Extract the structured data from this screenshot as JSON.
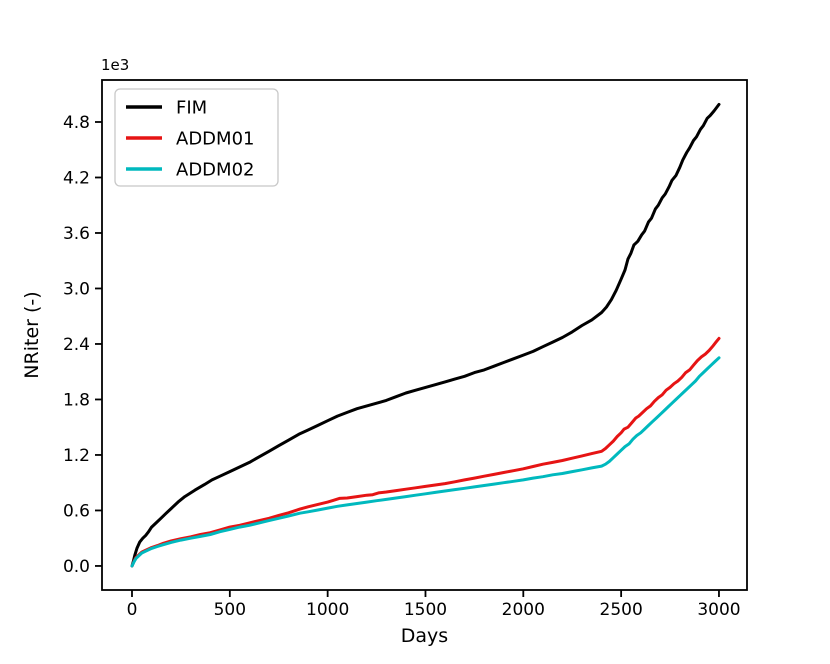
{
  "figure": {
    "background": "#ffffff"
  },
  "chart_data": {
    "type": "line",
    "title": "",
    "xlabel": "Days",
    "ylabel": "NRiter  (-)",
    "y_offset_text": "1e3",
    "y_values_unit": "1e3",
    "grid": false,
    "legend_position": "upper-left",
    "xlim": [
      -153.3,
      3143.3
    ],
    "ylim": [
      -0.26,
      5.254
    ],
    "xticks": [
      0,
      500,
      1000,
      1500,
      2000,
      2500,
      3000
    ],
    "yticks": [
      0.0,
      0.6,
      1.2,
      1.8,
      2.4,
      3.0,
      3.6,
      4.2,
      4.8
    ],
    "axis_color": "#000000",
    "legend_border_color": "#c8c8c8",
    "series": [
      {
        "name": "FIM",
        "color": "#000000",
        "points": [
          [
            0,
            0.0
          ],
          [
            8,
            0.06
          ],
          [
            15,
            0.12
          ],
          [
            25,
            0.19
          ],
          [
            40,
            0.26
          ],
          [
            55,
            0.3
          ],
          [
            70,
            0.33
          ],
          [
            85,
            0.37
          ],
          [
            100,
            0.42
          ],
          [
            125,
            0.47
          ],
          [
            150,
            0.52
          ],
          [
            175,
            0.57
          ],
          [
            200,
            0.62
          ],
          [
            235,
            0.69
          ],
          [
            270,
            0.75
          ],
          [
            322,
            0.82
          ],
          [
            370,
            0.88
          ],
          [
            409,
            0.93
          ],
          [
            450,
            0.97
          ],
          [
            500,
            1.02
          ],
          [
            550,
            1.07
          ],
          [
            600,
            1.12
          ],
          [
            650,
            1.18
          ],
          [
            700,
            1.24
          ],
          [
            750,
            1.3
          ],
          [
            800,
            1.36
          ],
          [
            858,
            1.43
          ],
          [
            900,
            1.47
          ],
          [
            950,
            1.52
          ],
          [
            1000,
            1.57
          ],
          [
            1050,
            1.62
          ],
          [
            1100,
            1.66
          ],
          [
            1150,
            1.7
          ],
          [
            1200,
            1.73
          ],
          [
            1250,
            1.76
          ],
          [
            1300,
            1.79
          ],
          [
            1350,
            1.83
          ],
          [
            1400,
            1.87
          ],
          [
            1450,
            1.9
          ],
          [
            1500,
            1.93
          ],
          [
            1550,
            1.96
          ],
          [
            1600,
            1.99
          ],
          [
            1650,
            2.02
          ],
          [
            1700,
            2.05
          ],
          [
            1750,
            2.09
          ],
          [
            1800,
            2.12
          ],
          [
            1850,
            2.16
          ],
          [
            1900,
            2.2
          ],
          [
            1950,
            2.24
          ],
          [
            2000,
            2.28
          ],
          [
            2050,
            2.32
          ],
          [
            2100,
            2.37
          ],
          [
            2150,
            2.42
          ],
          [
            2200,
            2.47
          ],
          [
            2250,
            2.53
          ],
          [
            2300,
            2.6
          ],
          [
            2350,
            2.66
          ],
          [
            2400,
            2.74
          ],
          [
            2425,
            2.8
          ],
          [
            2450,
            2.88
          ],
          [
            2475,
            2.98
          ],
          [
            2500,
            3.1
          ],
          [
            2520,
            3.2
          ],
          [
            2535,
            3.32
          ],
          [
            2550,
            3.38
          ],
          [
            2565,
            3.47
          ],
          [
            2585,
            3.51
          ],
          [
            2605,
            3.58
          ],
          [
            2620,
            3.62
          ],
          [
            2640,
            3.72
          ],
          [
            2655,
            3.76
          ],
          [
            2675,
            3.86
          ],
          [
            2690,
            3.9
          ],
          [
            2710,
            3.98
          ],
          [
            2725,
            4.02
          ],
          [
            2745,
            4.1
          ],
          [
            2760,
            4.17
          ],
          [
            2780,
            4.22
          ],
          [
            2800,
            4.31
          ],
          [
            2815,
            4.39
          ],
          [
            2835,
            4.47
          ],
          [
            2850,
            4.52
          ],
          [
            2870,
            4.6
          ],
          [
            2885,
            4.64
          ],
          [
            2905,
            4.72
          ],
          [
            2920,
            4.76
          ],
          [
            2940,
            4.84
          ],
          [
            2955,
            4.87
          ],
          [
            2975,
            4.92
          ],
          [
            3000,
            4.99
          ]
        ]
      },
      {
        "name": "ADDM01",
        "color": "#e61414",
        "points": [
          [
            0,
            0.0
          ],
          [
            10,
            0.05
          ],
          [
            20,
            0.09
          ],
          [
            35,
            0.12
          ],
          [
            50,
            0.15
          ],
          [
            70,
            0.17
          ],
          [
            100,
            0.2
          ],
          [
            130,
            0.22
          ],
          [
            160,
            0.245
          ],
          [
            200,
            0.27
          ],
          [
            250,
            0.295
          ],
          [
            300,
            0.315
          ],
          [
            350,
            0.34
          ],
          [
            400,
            0.36
          ],
          [
            450,
            0.39
          ],
          [
            500,
            0.42
          ],
          [
            550,
            0.44
          ],
          [
            600,
            0.465
          ],
          [
            650,
            0.49
          ],
          [
            700,
            0.515
          ],
          [
            750,
            0.545
          ],
          [
            800,
            0.575
          ],
          [
            858,
            0.615
          ],
          [
            900,
            0.64
          ],
          [
            950,
            0.665
          ],
          [
            1000,
            0.69
          ],
          [
            1030,
            0.71
          ],
          [
            1060,
            0.73
          ],
          [
            1100,
            0.735
          ],
          [
            1150,
            0.75
          ],
          [
            1200,
            0.765
          ],
          [
            1230,
            0.77
          ],
          [
            1260,
            0.79
          ],
          [
            1300,
            0.8
          ],
          [
            1350,
            0.815
          ],
          [
            1400,
            0.83
          ],
          [
            1450,
            0.845
          ],
          [
            1500,
            0.86
          ],
          [
            1550,
            0.875
          ],
          [
            1600,
            0.89
          ],
          [
            1650,
            0.91
          ],
          [
            1700,
            0.93
          ],
          [
            1750,
            0.95
          ],
          [
            1800,
            0.97
          ],
          [
            1850,
            0.99
          ],
          [
            1900,
            1.01
          ],
          [
            1950,
            1.03
          ],
          [
            2000,
            1.05
          ],
          [
            2050,
            1.075
          ],
          [
            2100,
            1.1
          ],
          [
            2150,
            1.12
          ],
          [
            2200,
            1.14
          ],
          [
            2250,
            1.165
          ],
          [
            2300,
            1.19
          ],
          [
            2350,
            1.215
          ],
          [
            2400,
            1.24
          ],
          [
            2420,
            1.27
          ],
          [
            2440,
            1.31
          ],
          [
            2460,
            1.35
          ],
          [
            2480,
            1.4
          ],
          [
            2500,
            1.44
          ],
          [
            2515,
            1.48
          ],
          [
            2535,
            1.5
          ],
          [
            2555,
            1.55
          ],
          [
            2575,
            1.6
          ],
          [
            2590,
            1.62
          ],
          [
            2610,
            1.66
          ],
          [
            2630,
            1.7
          ],
          [
            2650,
            1.73
          ],
          [
            2670,
            1.78
          ],
          [
            2690,
            1.82
          ],
          [
            2710,
            1.85
          ],
          [
            2730,
            1.9
          ],
          [
            2750,
            1.93
          ],
          [
            2770,
            1.97
          ],
          [
            2790,
            2.0
          ],
          [
            2810,
            2.04
          ],
          [
            2830,
            2.09
          ],
          [
            2850,
            2.12
          ],
          [
            2870,
            2.17
          ],
          [
            2890,
            2.22
          ],
          [
            2910,
            2.26
          ],
          [
            2930,
            2.29
          ],
          [
            2950,
            2.33
          ],
          [
            2970,
            2.38
          ],
          [
            2985,
            2.42
          ],
          [
            3000,
            2.46
          ]
        ]
      },
      {
        "name": "ADDM02",
        "color": "#00b9be",
        "points": [
          [
            0,
            0.0
          ],
          [
            10,
            0.045
          ],
          [
            20,
            0.08
          ],
          [
            35,
            0.11
          ],
          [
            50,
            0.14
          ],
          [
            70,
            0.16
          ],
          [
            100,
            0.19
          ],
          [
            130,
            0.21
          ],
          [
            160,
            0.23
          ],
          [
            200,
            0.255
          ],
          [
            250,
            0.28
          ],
          [
            300,
            0.3
          ],
          [
            350,
            0.32
          ],
          [
            400,
            0.34
          ],
          [
            450,
            0.37
          ],
          [
            500,
            0.395
          ],
          [
            550,
            0.42
          ],
          [
            600,
            0.44
          ],
          [
            650,
            0.465
          ],
          [
            700,
            0.49
          ],
          [
            750,
            0.515
          ],
          [
            800,
            0.54
          ],
          [
            858,
            0.57
          ],
          [
            900,
            0.585
          ],
          [
            950,
            0.605
          ],
          [
            1000,
            0.625
          ],
          [
            1050,
            0.645
          ],
          [
            1100,
            0.66
          ],
          [
            1150,
            0.675
          ],
          [
            1200,
            0.69
          ],
          [
            1250,
            0.705
          ],
          [
            1300,
            0.72
          ],
          [
            1350,
            0.735
          ],
          [
            1400,
            0.75
          ],
          [
            1450,
            0.765
          ],
          [
            1500,
            0.78
          ],
          [
            1550,
            0.795
          ],
          [
            1600,
            0.81
          ],
          [
            1650,
            0.825
          ],
          [
            1700,
            0.84
          ],
          [
            1750,
            0.855
          ],
          [
            1800,
            0.87
          ],
          [
            1850,
            0.885
          ],
          [
            1900,
            0.9
          ],
          [
            1950,
            0.915
          ],
          [
            2000,
            0.93
          ],
          [
            2050,
            0.95
          ],
          [
            2100,
            0.965
          ],
          [
            2150,
            0.985
          ],
          [
            2200,
            1.0
          ],
          [
            2250,
            1.02
          ],
          [
            2300,
            1.04
          ],
          [
            2350,
            1.06
          ],
          [
            2400,
            1.08
          ],
          [
            2420,
            1.1
          ],
          [
            2440,
            1.13
          ],
          [
            2460,
            1.17
          ],
          [
            2480,
            1.21
          ],
          [
            2500,
            1.25
          ],
          [
            2520,
            1.29
          ],
          [
            2540,
            1.32
          ],
          [
            2560,
            1.37
          ],
          [
            2580,
            1.41
          ],
          [
            2600,
            1.44
          ],
          [
            2620,
            1.48
          ],
          [
            2640,
            1.52
          ],
          [
            2660,
            1.56
          ],
          [
            2680,
            1.6
          ],
          [
            2700,
            1.64
          ],
          [
            2720,
            1.68
          ],
          [
            2740,
            1.72
          ],
          [
            2760,
            1.76
          ],
          [
            2780,
            1.8
          ],
          [
            2800,
            1.84
          ],
          [
            2820,
            1.88
          ],
          [
            2840,
            1.92
          ],
          [
            2860,
            1.96
          ],
          [
            2880,
            2.0
          ],
          [
            2900,
            2.05
          ],
          [
            2920,
            2.09
          ],
          [
            2940,
            2.13
          ],
          [
            2960,
            2.17
          ],
          [
            2980,
            2.21
          ],
          [
            3000,
            2.25
          ]
        ]
      }
    ]
  }
}
